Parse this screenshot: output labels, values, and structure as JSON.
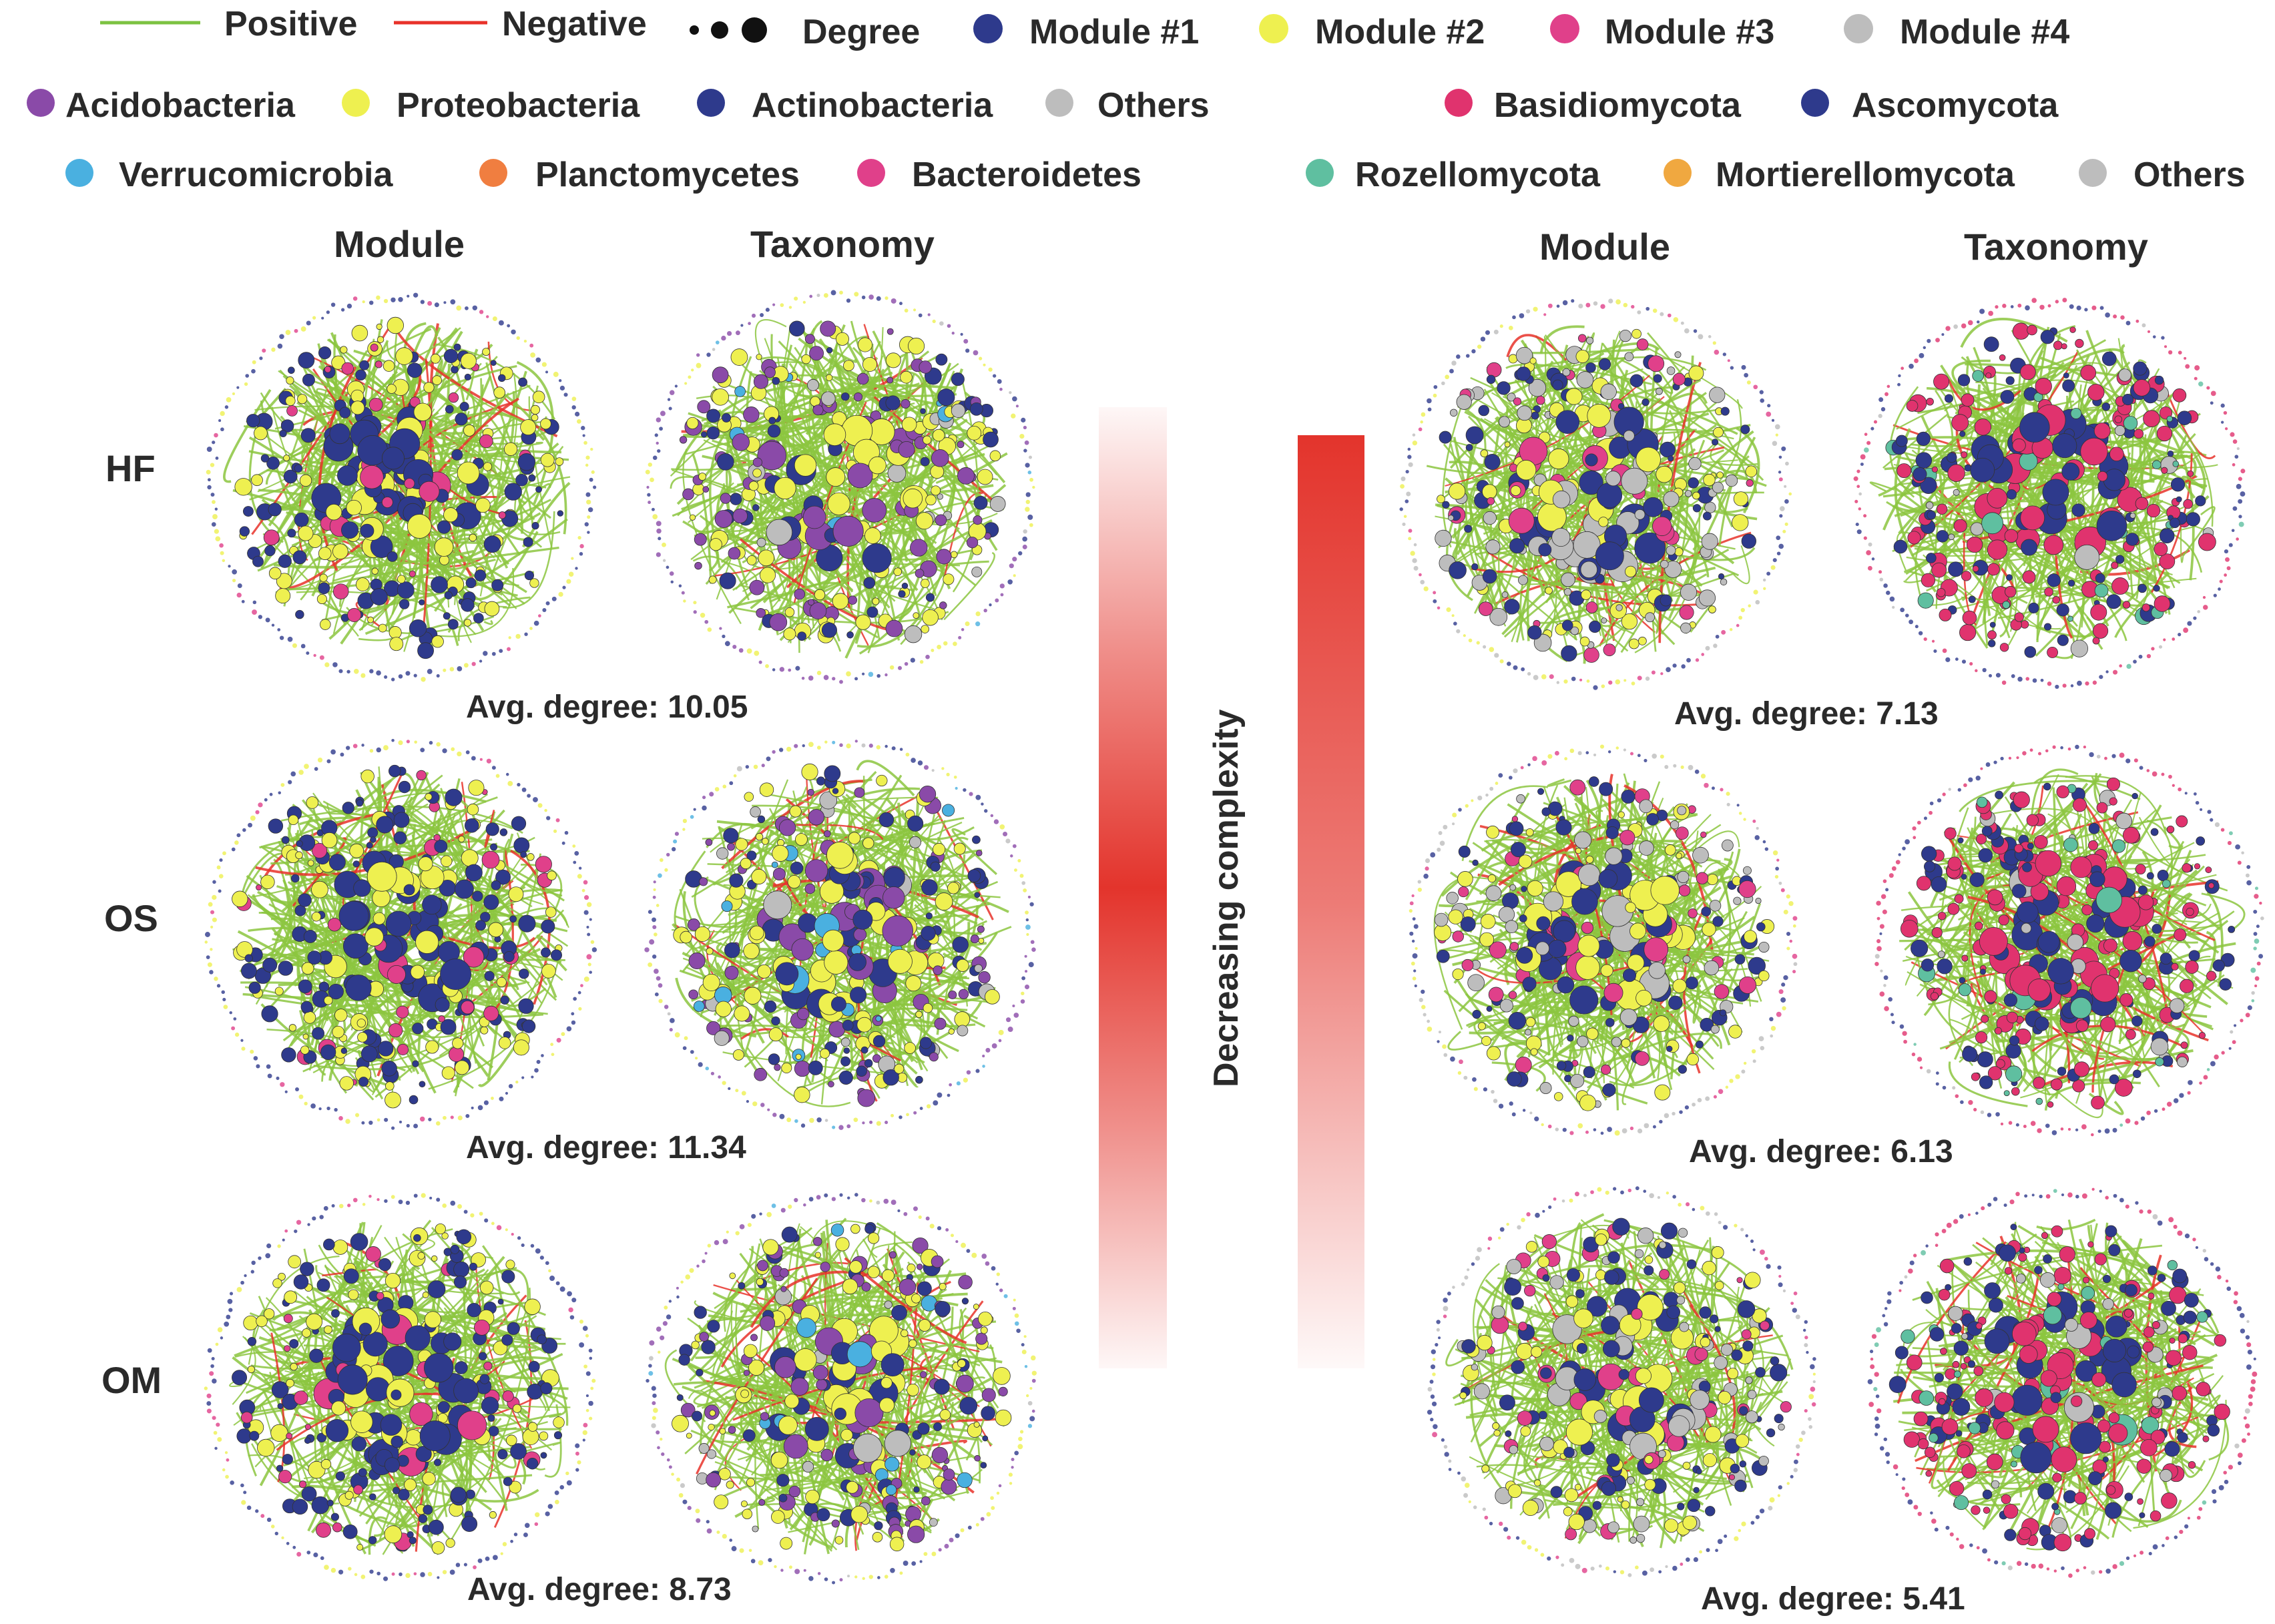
{
  "legend_top": {
    "positive_label": "Positive",
    "negative_label": "Negative",
    "degree_label": "Degree",
    "modules": [
      {
        "label": "Module  #1",
        "color": "#2e3a8c"
      },
      {
        "label": "Module  #2",
        "color": "#eef050"
      },
      {
        "label": "Module  #3",
        "color": "#e0408a"
      },
      {
        "label": "Module  #4",
        "color": "#bdbdbd"
      }
    ],
    "positive_color": "#7cc242",
    "negative_color": "#e8322a"
  },
  "legend_bacteria": [
    {
      "label": "Acidobacteria",
      "color": "#8a4aa8"
    },
    {
      "label": "Proteobacteria",
      "color": "#eef050"
    },
    {
      "label": "Actinobacteria",
      "color": "#2e3a8c"
    },
    {
      "label": "Others",
      "color": "#bdbdbd"
    },
    {
      "label": "Verrucomicrobia",
      "color": "#4ab0e0"
    },
    {
      "label": "Planctomycetes",
      "color": "#f07e40"
    },
    {
      "label": "Bacteroidetes",
      "color": "#e0408a"
    }
  ],
  "legend_fungi": [
    {
      "label": "Basidiomycota",
      "color": "#e0336e"
    },
    {
      "label": "Ascomycota",
      "color": "#2e3a8c"
    },
    {
      "label": "Rozellomycota",
      "color": "#5fbfa0"
    },
    {
      "label": "Mortierellomycota",
      "color": "#f0a840"
    },
    {
      "label": "Others",
      "color": "#bdbdbd"
    }
  ],
  "headings": {
    "module": "Module",
    "taxonomy": "Taxonomy"
  },
  "rows": [
    {
      "label": "HF",
      "bacteria_avg": "Avg. degree: 10.05",
      "fungi_avg": "Avg. degree: 7.13"
    },
    {
      "label": "OS",
      "bacteria_avg": "Avg. degree: 11.34",
      "fungi_avg": "Avg. degree: 6.13"
    },
    {
      "label": "OM",
      "bacteria_avg": "Avg. degree: 8.73",
      "fungi_avg": "Avg. degree: 5.41"
    }
  ],
  "gradient_label": "Decreasing complexity",
  "gradient_color": "#e3342c"
}
